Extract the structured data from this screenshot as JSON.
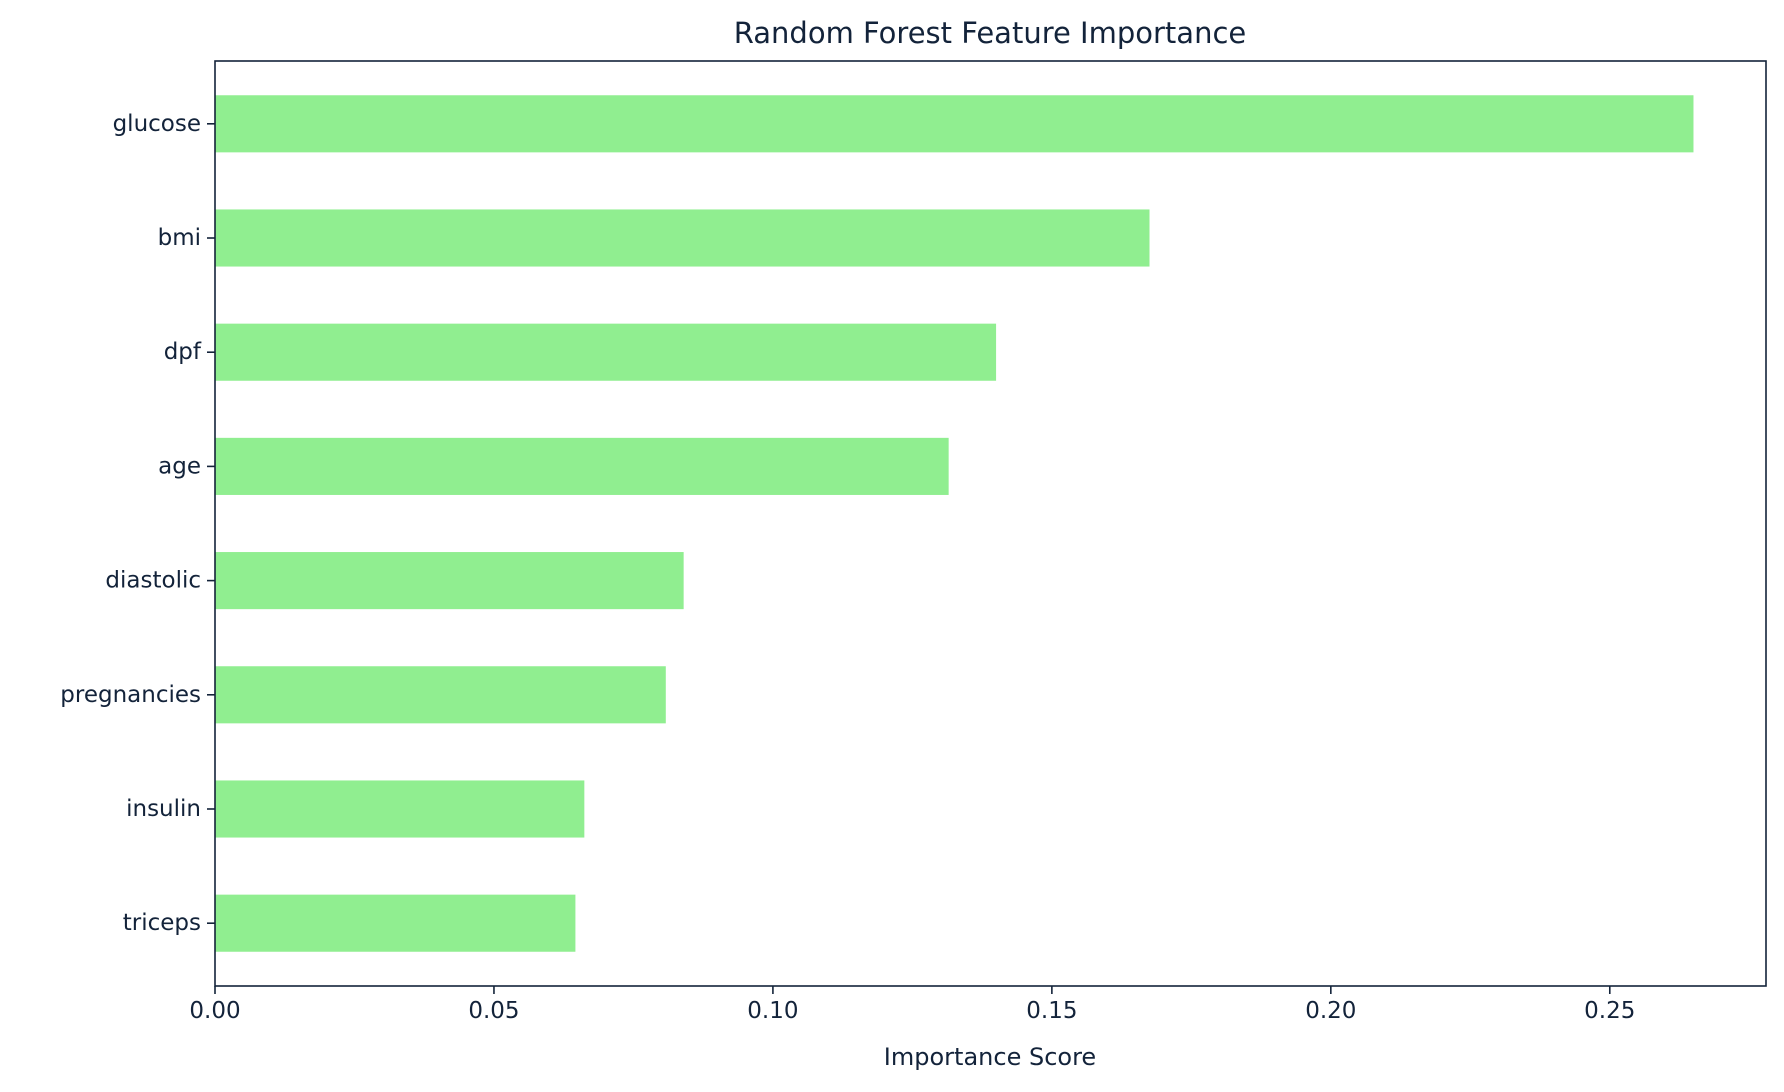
{
  "chart_data": {
    "type": "bar",
    "orientation": "horizontal",
    "title": "Random Forest Feature Importance",
    "xlabel": "Importance Score",
    "ylabel": "",
    "categories": [
      "glucose",
      "bmi",
      "dpf",
      "age",
      "diastolic",
      "pregnancies",
      "insulin",
      "triceps"
    ],
    "values": [
      0.265,
      0.1675,
      0.14,
      0.1315,
      0.084,
      0.0808,
      0.0662,
      0.0646
    ],
    "xlim": [
      0,
      0.278
    ],
    "xticks": [
      0.0,
      0.05,
      0.1,
      0.15,
      0.2,
      0.25
    ],
    "xtick_labels": [
      "0.00",
      "0.05",
      "0.10",
      "0.15",
      "0.20",
      "0.25"
    ],
    "grid": false,
    "bar_color": "#90ee90"
  }
}
